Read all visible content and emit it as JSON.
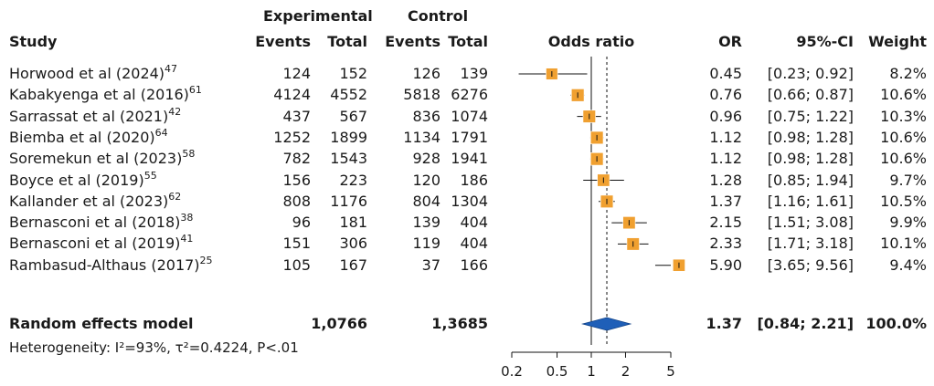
{
  "header": {
    "group_experimental": "Experimental",
    "group_control": "Control",
    "col_study": "Study",
    "col_events_exp": "Events",
    "col_total_exp": "Total",
    "col_events_ctl": "Events",
    "col_total_ctl": "Total",
    "col_odds_ratio": "Odds ratio",
    "col_or": "OR",
    "col_ci": "95%-CI",
    "col_weight": "Weight"
  },
  "summary": {
    "label": "Random effects model",
    "total_exp": "1,0766",
    "total_ctl": "1,3685",
    "or": "1.37",
    "ci": "[0.84; 2.21]",
    "weight": "100.0%",
    "heterogeneity": "Heterogeneity: I²=93%, τ²=0.4224, P<.01"
  },
  "chart_data": {
    "type": "forest",
    "xscale": "log",
    "xlim": [
      0.2,
      5
    ],
    "x_ticks": [
      "0.2",
      "0.5",
      "1",
      "2",
      "5"
    ],
    "reference_line": 1,
    "pooled_line": 1.37,
    "colors": {
      "box": "#f0a030",
      "box_edge": "#ffffff",
      "diamond": "#1f5fb8",
      "line": "#111111"
    },
    "studies": [
      {
        "name": "Horwood et al (2024)",
        "ref": "47",
        "ev_exp": "124",
        "n_exp": "152",
        "ev_ctl": "126",
        "n_ctl": "139",
        "or": 0.45,
        "lo": 0.23,
        "hi": 0.92,
        "or_text": "0.45",
        "ci_text": "[0.23; 0.92]",
        "weight": "8.2%"
      },
      {
        "name": "Kabakyenga et al (2016)",
        "ref": "61",
        "ev_exp": "4124",
        "n_exp": "4552",
        "ev_ctl": "5818",
        "n_ctl": "6276",
        "or": 0.76,
        "lo": 0.66,
        "hi": 0.87,
        "or_text": "0.76",
        "ci_text": "[0.66; 0.87]",
        "weight": "10.6%"
      },
      {
        "name": "Sarrassat et al (2021)",
        "ref": "42",
        "ev_exp": "437",
        "n_exp": "567",
        "ev_ctl": "836",
        "n_ctl": "1074",
        "or": 0.96,
        "lo": 0.75,
        "hi": 1.22,
        "or_text": "0.96",
        "ci_text": "[0.75; 1.22]",
        "weight": "10.3%"
      },
      {
        "name": "Biemba et al (2020)",
        "ref": "64",
        "ev_exp": "1252",
        "n_exp": "1899",
        "ev_ctl": "1134",
        "n_ctl": "1791",
        "or": 1.12,
        "lo": 0.98,
        "hi": 1.28,
        "or_text": "1.12",
        "ci_text": "[0.98; 1.28]",
        "weight": "10.6%"
      },
      {
        "name": "Soremekun et al (2023)",
        "ref": "58",
        "ev_exp": "782",
        "n_exp": "1543",
        "ev_ctl": "928",
        "n_ctl": "1941",
        "or": 1.12,
        "lo": 0.98,
        "hi": 1.28,
        "or_text": "1.12",
        "ci_text": "[0.98; 1.28]",
        "weight": "10.6%"
      },
      {
        "name": "Boyce et al (2019)",
        "ref": "55",
        "ev_exp": "156",
        "n_exp": "223",
        "ev_ctl": "120",
        "n_ctl": "186",
        "or": 1.28,
        "lo": 0.85,
        "hi": 1.94,
        "or_text": "1.28",
        "ci_text": "[0.85; 1.94]",
        "weight": "9.7%"
      },
      {
        "name": "Kallander et al (2023)",
        "ref": "62",
        "ev_exp": "808",
        "n_exp": "1176",
        "ev_ctl": "804",
        "n_ctl": "1304",
        "or": 1.37,
        "lo": 1.16,
        "hi": 1.61,
        "or_text": "1.37",
        "ci_text": "[1.16; 1.61]",
        "weight": "10.5%"
      },
      {
        "name": "Bernasconi et al (2018)",
        "ref": "38",
        "ev_exp": "96",
        "n_exp": "181",
        "ev_ctl": "139",
        "n_ctl": "404",
        "or": 2.15,
        "lo": 1.51,
        "hi": 3.08,
        "or_text": "2.15",
        "ci_text": "[1.51; 3.08]",
        "weight": "9.9%"
      },
      {
        "name": "Bernasconi et al (2019)",
        "ref": "41",
        "ev_exp": "151",
        "n_exp": "306",
        "ev_ctl": "119",
        "n_ctl": "404",
        "or": 2.33,
        "lo": 1.71,
        "hi": 3.18,
        "or_text": "2.33",
        "ci_text": "[1.71; 3.18]",
        "weight": "10.1%"
      },
      {
        "name": "Rambasud-Althaus (2017)",
        "ref": "25",
        "ev_exp": "105",
        "n_exp": "167",
        "ev_ctl": "37",
        "n_ctl": "166",
        "or": 5.9,
        "lo": 3.65,
        "hi": 9.56,
        "or_text": "5.90",
        "ci_text": "[3.65; 9.56]",
        "weight": "9.4%"
      }
    ],
    "pooled": {
      "or": 1.37,
      "lo": 0.84,
      "hi": 2.21
    }
  }
}
